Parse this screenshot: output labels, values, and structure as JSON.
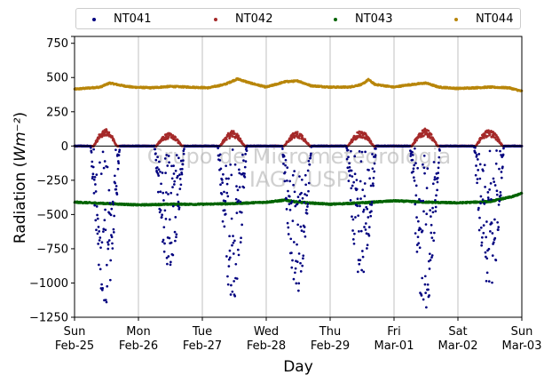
{
  "chart_data": {
    "type": "scatter",
    "xlabel": "Day",
    "ylabel": "Radiation (Wm⁻²)",
    "watermark": [
      "Grupo de Micrometeorologia",
      "IAG / USP"
    ],
    "ylim": [
      -1250,
      800
    ],
    "yticks": [
      800,
      750,
      500,
      250,
      0,
      -250,
      -500,
      -750,
      -1000,
      -1250
    ],
    "ytick_labels": [
      "",
      "750",
      "500",
      "250",
      "0",
      "−250",
      "−500",
      "−750",
      "−1000",
      "−1250"
    ],
    "xlim": [
      0,
      7
    ],
    "xticks": [
      {
        "day": 0,
        "line1": "Sun",
        "line2": "Feb-25"
      },
      {
        "day": 1,
        "line1": "Mon",
        "line2": "Feb-26"
      },
      {
        "day": 2,
        "line1": "Tue",
        "line2": "Feb-27"
      },
      {
        "day": 3,
        "line1": "Wed",
        "line2": "Feb-28"
      },
      {
        "day": 4,
        "line1": "Thu",
        "line2": "Feb-29"
      },
      {
        "day": 5,
        "line1": "Fri",
        "line2": "Mar-01"
      },
      {
        "day": 6,
        "line1": "Sat",
        "line2": "Mar-02"
      },
      {
        "day": 7,
        "line1": "Sun",
        "line2": "Mar-03"
      }
    ],
    "grid": "vertical",
    "legend_position": "top",
    "series": [
      {
        "name": "NT041",
        "color": "#00007f",
        "baseline": 0,
        "day_minima": [
          -1180,
          -920,
          -1140,
          -1090,
          -1000,
          -1230,
          -1150
        ],
        "day_spans": [
          [
            0.25,
            0.71
          ],
          [
            0.25,
            0.72
          ],
          [
            0.24,
            0.7
          ],
          [
            0.25,
            0.71
          ],
          [
            0.25,
            0.72
          ],
          [
            0.25,
            0.72
          ],
          [
            0.25,
            0.72
          ]
        ]
      },
      {
        "name": "NT042",
        "color": "#a52a2a",
        "baseline": 0,
        "day_maxima": [
          125,
          95,
          110,
          105,
          110,
          130,
          120
        ],
        "day_spans": [
          [
            0.3,
            0.66
          ],
          [
            0.28,
            0.68
          ],
          [
            0.28,
            0.66
          ],
          [
            0.28,
            0.68
          ],
          [
            0.28,
            0.68
          ],
          [
            0.28,
            0.68
          ],
          [
            0.28,
            0.7
          ]
        ]
      },
      {
        "name": "NT043",
        "color": "#006400",
        "level_points": [
          [
            0,
            -410
          ],
          [
            0.5,
            -420
          ],
          [
            1.0,
            -430
          ],
          [
            1.5,
            -425
          ],
          [
            2.0,
            -425
          ],
          [
            2.5,
            -420
          ],
          [
            3.0,
            -410
          ],
          [
            3.3,
            -395
          ],
          [
            3.5,
            -410
          ],
          [
            4.0,
            -425
          ],
          [
            4.5,
            -415
          ],
          [
            5.0,
            -400
          ],
          [
            5.5,
            -410
          ],
          [
            6.0,
            -415
          ],
          [
            6.5,
            -405
          ],
          [
            6.85,
            -370
          ],
          [
            7.0,
            -345
          ]
        ]
      },
      {
        "name": "NT044",
        "color": "#b8860b",
        "level_points": [
          [
            0,
            415
          ],
          [
            0.4,
            430
          ],
          [
            0.55,
            460
          ],
          [
            0.7,
            445
          ],
          [
            0.9,
            430
          ],
          [
            1.2,
            425
          ],
          [
            1.5,
            435
          ],
          [
            1.8,
            430
          ],
          [
            2.1,
            425
          ],
          [
            2.35,
            450
          ],
          [
            2.55,
            490
          ],
          [
            2.75,
            460
          ],
          [
            3.0,
            430
          ],
          [
            3.3,
            470
          ],
          [
            3.5,
            475
          ],
          [
            3.7,
            440
          ],
          [
            4.0,
            430
          ],
          [
            4.3,
            430
          ],
          [
            4.5,
            450
          ],
          [
            4.6,
            485
          ],
          [
            4.7,
            450
          ],
          [
            5.0,
            430
          ],
          [
            5.2,
            445
          ],
          [
            5.5,
            460
          ],
          [
            5.7,
            430
          ],
          [
            6.0,
            420
          ],
          [
            6.5,
            430
          ],
          [
            6.8,
            425
          ],
          [
            7.0,
            400
          ]
        ]
      }
    ]
  }
}
